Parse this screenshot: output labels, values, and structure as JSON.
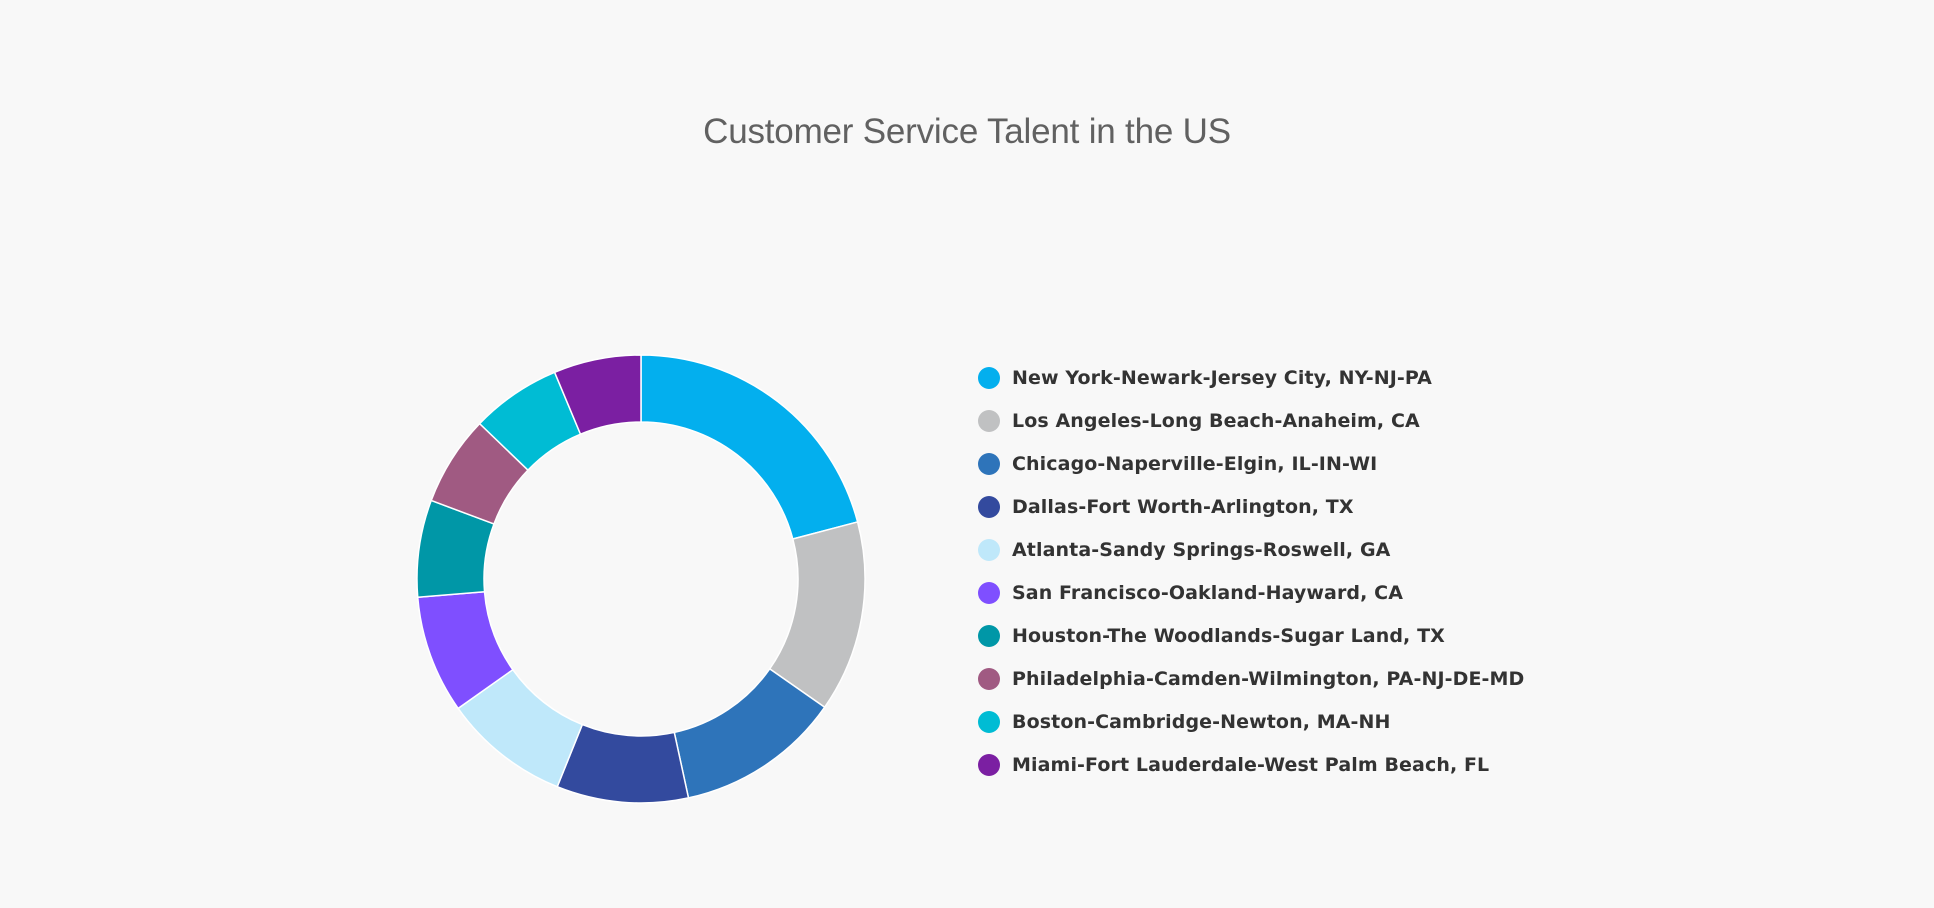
{
  "chart": {
    "title": "Customer Service Talent in the US"
  },
  "chart_data": {
    "type": "pie",
    "variant": "donut",
    "title": "Customer Service Talent in the US",
    "xlabel": "",
    "ylabel": "",
    "legend_position": "right",
    "categories": [
      "New York-Newark-Jersey City, NY-NJ-PA",
      "Los Angeles-Long Beach-Anaheim, CA",
      "Chicago-Naperville-Elgin, IL-IN-WI",
      "Dallas-Fort Worth-Arlington, TX",
      "Atlanta-Sandy Springs-Roswell, GA",
      "San Francisco-Oakland-Hayward, CA",
      "Houston-The Woodlands-Sugar Land, TX",
      "Philadelphia-Camden-Wilmington, PA-NJ-DE-MD",
      "Boston-Cambridge-Newton, MA-NH",
      "Miami-Fort Lauderdale-West Palm Beach, FL"
    ],
    "values": [
      20.9,
      13.8,
      11.9,
      9.5,
      9.1,
      8.5,
      7.0,
      6.5,
      6.5,
      6.3
    ],
    "value_unit": "percent of total (estimated from slice angles)",
    "colors": [
      "#03afee",
      "#c0c1c2",
      "#2e74ba",
      "#334a9e",
      "#bfe8fa",
      "#7f4fff",
      "#0097a7",
      "#a05a82",
      "#00bcd4",
      "#7b1fa2"
    ]
  },
  "legend": {
    "items": [
      {
        "label": "New York-Newark-Jersey City, NY-NJ-PA",
        "color": "#03afee"
      },
      {
        "label": "Los Angeles-Long Beach-Anaheim, CA",
        "color": "#c0c1c2"
      },
      {
        "label": "Chicago-Naperville-Elgin, IL-IN-WI",
        "color": "#2e74ba"
      },
      {
        "label": "Dallas-Fort Worth-Arlington, TX",
        "color": "#334a9e"
      },
      {
        "label": "Atlanta-Sandy Springs-Roswell, GA",
        "color": "#bfe8fa"
      },
      {
        "label": "San Francisco-Oakland-Hayward, CA",
        "color": "#7f4fff"
      },
      {
        "label": "Houston-The Woodlands-Sugar Land, TX",
        "color": "#0097a7"
      },
      {
        "label": "Philadelphia-Camden-Wilmington, PA-NJ-DE-MD",
        "color": "#a05a82"
      },
      {
        "label": "Boston-Cambridge-Newton, MA-NH",
        "color": "#00bcd4"
      },
      {
        "label": "Miami-Fort Lauderdale-West Palm Beach, FL",
        "color": "#7b1fa2"
      }
    ]
  }
}
